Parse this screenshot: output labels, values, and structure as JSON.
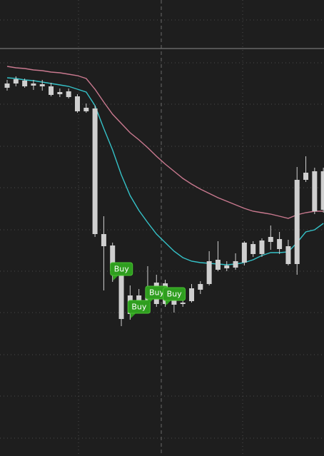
{
  "chart_data": {
    "type": "candlestick",
    "candle_color": "#cfcfcf",
    "ylim": [
      0,
      639
    ],
    "candles": [
      {
        "open": 522,
        "high": 527,
        "low": 512,
        "close": 516
      },
      {
        "open": 528,
        "high": 532,
        "low": 518,
        "close": 522
      },
      {
        "open": 526,
        "high": 529,
        "low": 516,
        "close": 518
      },
      {
        "open": 522,
        "high": 527,
        "low": 513,
        "close": 519
      },
      {
        "open": 521,
        "high": 527,
        "low": 512,
        "close": 518
      },
      {
        "open": 518,
        "high": 523,
        "low": 504,
        "close": 506
      },
      {
        "open": 510,
        "high": 515,
        "low": 503,
        "close": 507
      },
      {
        "open": 511,
        "high": 515,
        "low": 501,
        "close": 503
      },
      {
        "open": 504,
        "high": 507,
        "low": 481,
        "close": 483
      },
      {
        "open": 488,
        "high": 494,
        "low": 481,
        "close": 483
      },
      {
        "open": 487,
        "high": 491,
        "low": 307,
        "close": 311
      },
      {
        "open": 311,
        "high": 336,
        "low": 232,
        "close": 294
      },
      {
        "open": 295,
        "high": 299,
        "low": 244,
        "close": 259
      },
      {
        "open": 259,
        "high": 269,
        "low": 182,
        "close": 192
      },
      {
        "open": 225,
        "high": 239,
        "low": 191,
        "close": 199
      },
      {
        "open": 225,
        "high": 234,
        "low": 204,
        "close": 211
      },
      {
        "open": 234,
        "high": 266,
        "low": 211,
        "close": 217
      },
      {
        "open": 243,
        "high": 254,
        "low": 209,
        "close": 213
      },
      {
        "open": 242,
        "high": 247,
        "low": 209,
        "close": 213
      },
      {
        "open": 218,
        "high": 223,
        "low": 201,
        "close": 212
      },
      {
        "open": 215,
        "high": 219,
        "low": 209,
        "close": 213
      },
      {
        "open": 217,
        "high": 241,
        "low": 215,
        "close": 235
      },
      {
        "open": 233,
        "high": 245,
        "low": 227,
        "close": 241
      },
      {
        "open": 241,
        "high": 287,
        "low": 239,
        "close": 273
      },
      {
        "open": 261,
        "high": 301,
        "low": 259,
        "close": 275
      },
      {
        "open": 263,
        "high": 273,
        "low": 259,
        "close": 267
      },
      {
        "open": 264,
        "high": 284,
        "low": 261,
        "close": 273
      },
      {
        "open": 271,
        "high": 301,
        "low": 267,
        "close": 299
      },
      {
        "open": 283,
        "high": 301,
        "low": 279,
        "close": 297
      },
      {
        "open": 283,
        "high": 305,
        "low": 279,
        "close": 302
      },
      {
        "open": 300,
        "high": 323,
        "low": 289,
        "close": 307
      },
      {
        "open": 290,
        "high": 314,
        "low": 283,
        "close": 304
      },
      {
        "open": 269,
        "high": 303,
        "low": 267,
        "close": 294
      },
      {
        "open": 269,
        "high": 405,
        "low": 254,
        "close": 387
      },
      {
        "open": 387,
        "high": 420,
        "low": 384,
        "close": 397
      },
      {
        "open": 399,
        "high": 404,
        "low": 339,
        "close": 343
      },
      {
        "open": 399,
        "high": 404,
        "low": 341,
        "close": 345
      }
    ],
    "series": [
      {
        "color": "#c9798f",
        "values": [
          546,
          544,
          543,
          541,
          540,
          538,
          537,
          535,
          533,
          529,
          514,
          496,
          479,
          466,
          453,
          443,
          432,
          420,
          409,
          399,
          389,
          381,
          374,
          368,
          362,
          357,
          352,
          347,
          343,
          341,
          339,
          336,
          333,
          338,
          341,
          343,
          343
        ]
      },
      {
        "color": "#35c2c8",
        "values": [
          530,
          529,
          527,
          526,
          524,
          522,
          520,
          518,
          514,
          510,
          491,
          459,
          429,
          394,
          365,
          344,
          327,
          311,
          299,
          287,
          278,
          273,
          271,
          270,
          269,
          268,
          269,
          271,
          275,
          281,
          285,
          285,
          286,
          299,
          314,
          317,
          326
        ]
      }
    ],
    "annotations": [
      {
        "index": 12,
        "text": "Buy"
      },
      {
        "index": 14,
        "text": "Buy"
      },
      {
        "index": 16,
        "text": "Buy"
      },
      {
        "index": 18,
        "text": "Buy"
      }
    ]
  }
}
